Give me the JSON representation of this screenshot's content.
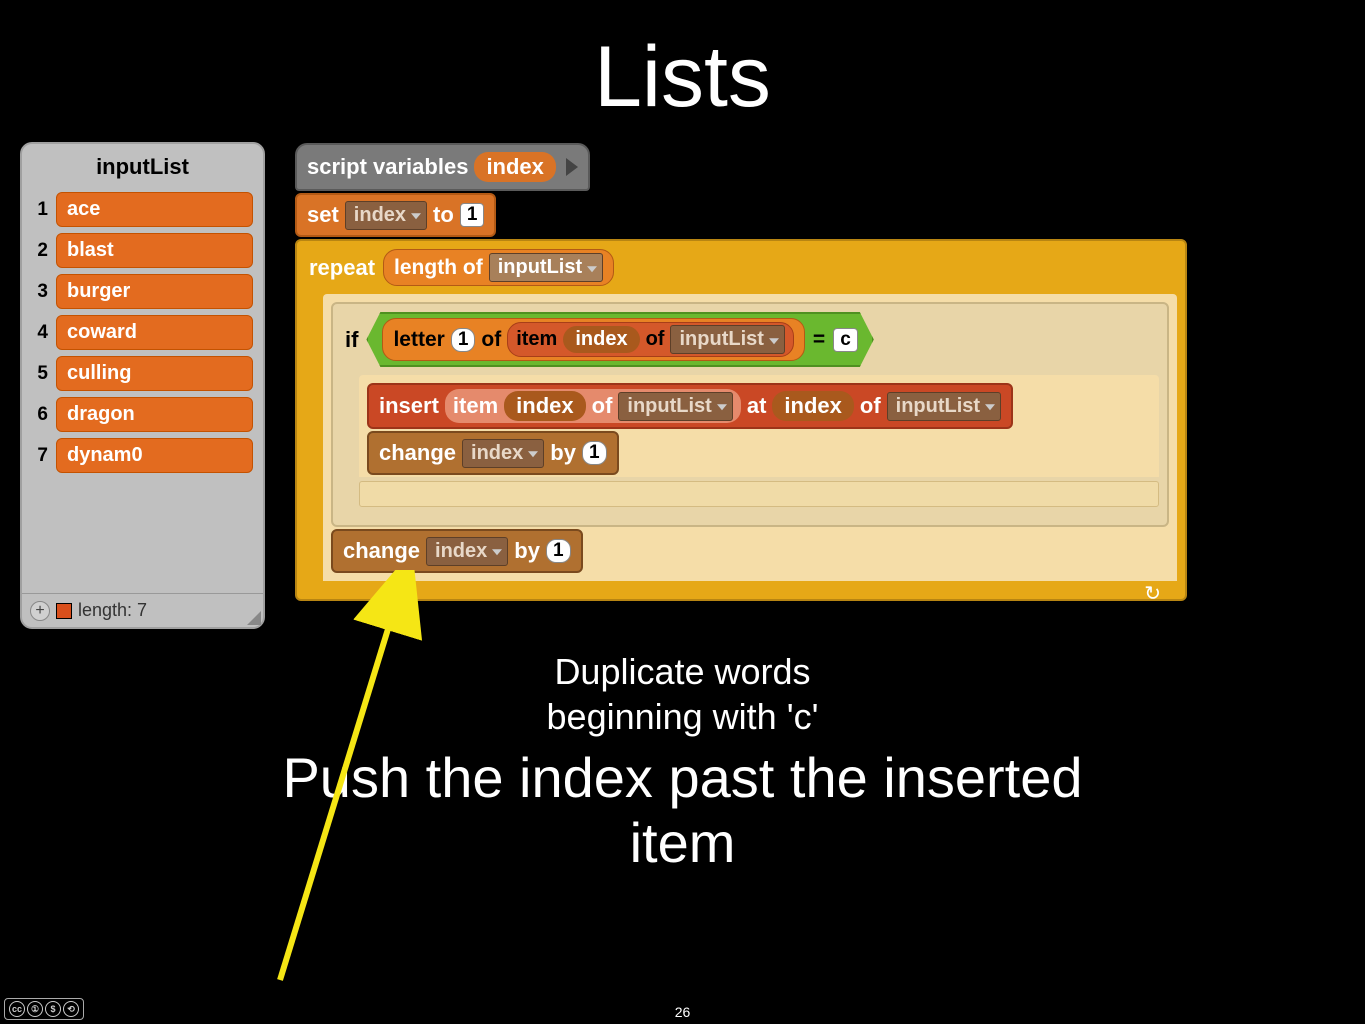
{
  "title": "Lists",
  "list_watcher": {
    "name": "inputList",
    "items": [
      "ace",
      "blast",
      "burger",
      "coward",
      "culling",
      "dragon",
      "dynam0"
    ],
    "length_label": "length: 7"
  },
  "script": {
    "script_vars_label": "script variables",
    "index_var": "index",
    "set_label": "set",
    "to_label": "to",
    "set_value": "1",
    "repeat_label": "repeat",
    "length_of_label": "length of",
    "input_list_dd": "inputList",
    "if_label": "if",
    "letter_label": "letter",
    "letter_num": "1",
    "of_label": "of",
    "item_label": "item",
    "equals": "=",
    "compare_val": "c",
    "insert_label": "insert",
    "at_label": "at",
    "change_label": "change",
    "by_label": "by",
    "change_val": "1"
  },
  "captions": {
    "sub1": "Duplicate words",
    "sub2": "beginning with 'c'",
    "main": "Push the index past the inserted",
    "main2": "item"
  },
  "page_number": "26",
  "cc": {
    "by": "BY",
    "nc": "NC",
    "sa": "SA"
  },
  "colors": {
    "bg": "#000000",
    "panel": "#c0c0c0",
    "orange": "#d97326",
    "list_orange": "#e36b1f",
    "brown": "#b07030",
    "gold": "#e6a817",
    "tan": "#e8d5a8",
    "tan_body": "#f5dda8",
    "green": "#6ab82f",
    "red": "#ca4825",
    "grey": "#7a7a7a",
    "arrow": "#f5e615"
  }
}
